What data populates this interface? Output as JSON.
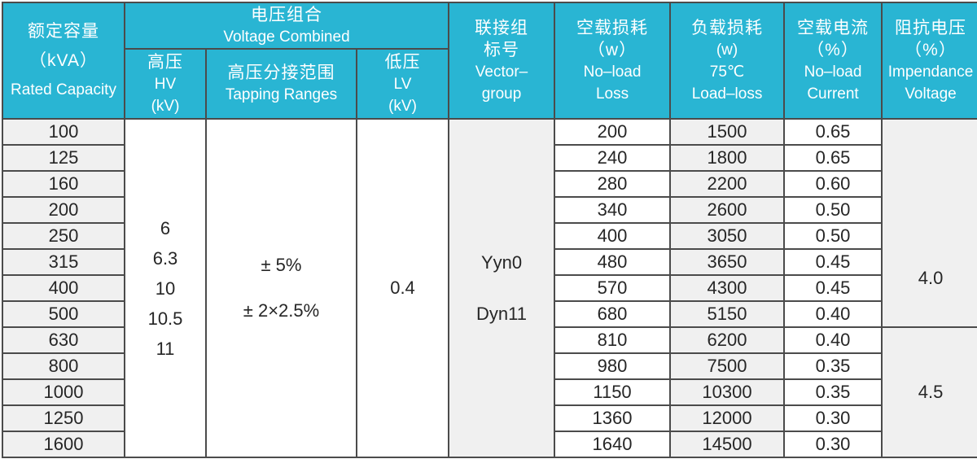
{
  "colors": {
    "header_bg": "#29b5d3",
    "header_text": "#ffffff",
    "gray_col_bg": "#f0f0f0",
    "border": "#4b4b4b",
    "outer_border": "#1a1a1a",
    "body_text": "#262626"
  },
  "header": {
    "rated_capacity": {
      "zh": "额定容量",
      "unit": "（kVA）",
      "en": "Rated Capacity"
    },
    "voltage_combined": {
      "zh": "电压组合",
      "en": "Voltage Combined"
    },
    "hv": {
      "zh": "高压",
      "en": "HV",
      "unit": "(kV)"
    },
    "tapping": {
      "zh": "高压分接范围",
      "en": "Tapping Ranges"
    },
    "lv": {
      "zh": "低压",
      "en": "LV",
      "unit": "(kV)"
    },
    "vector_group": {
      "zh1": "联接组",
      "zh2": "标号",
      "en1": "Vector–",
      "en2": "group"
    },
    "noload_loss": {
      "zh": "空载损耗",
      "unit": "（w）",
      "en1": "No–load",
      "en2": "Loss"
    },
    "load_loss": {
      "zh": "负载损耗",
      "unit": "(w)",
      "temp": "75℃",
      "en": "Load–loss"
    },
    "noload_current": {
      "zh": "空载电流",
      "unit": "（%）",
      "en1": "No–load",
      "en2": "Current"
    },
    "impedance": {
      "zh": "阻抗电压",
      "unit": "（%）",
      "en1": "Impendance",
      "en2": "Voltage"
    }
  },
  "merged": {
    "hv_values": [
      "6",
      "6.3",
      "10",
      "10.5",
      "11"
    ],
    "tapping_values": [
      "± 5%",
      "± 2×2.5%"
    ],
    "lv_value": "0.4",
    "vector_groups": [
      "Yyn0",
      "Dyn11"
    ],
    "impedance_groups": [
      {
        "value": "4.0",
        "row_span": 8,
        "align": "low"
      },
      {
        "value": "4.5",
        "row_span": 5,
        "align": "center"
      }
    ]
  },
  "rows": [
    {
      "capacity": "100",
      "noload_loss": "200",
      "load_loss": "1500",
      "noload_current": "0.65"
    },
    {
      "capacity": "125",
      "noload_loss": "240",
      "load_loss": "1800",
      "noload_current": "0.65"
    },
    {
      "capacity": "160",
      "noload_loss": "280",
      "load_loss": "2200",
      "noload_current": "0.60"
    },
    {
      "capacity": "200",
      "noload_loss": "340",
      "load_loss": "2600",
      "noload_current": "0.50"
    },
    {
      "capacity": "250",
      "noload_loss": "400",
      "load_loss": "3050",
      "noload_current": "0.50"
    },
    {
      "capacity": "315",
      "noload_loss": "480",
      "load_loss": "3650",
      "noload_current": "0.45"
    },
    {
      "capacity": "400",
      "noload_loss": "570",
      "load_loss": "4300",
      "noload_current": "0.45"
    },
    {
      "capacity": "500",
      "noload_loss": "680",
      "load_loss": "5150",
      "noload_current": "0.40"
    },
    {
      "capacity": "630",
      "noload_loss": "810",
      "load_loss": "6200",
      "noload_current": "0.40"
    },
    {
      "capacity": "800",
      "noload_loss": "980",
      "load_loss": "7500",
      "noload_current": "0.35"
    },
    {
      "capacity": "1000",
      "noload_loss": "1150",
      "load_loss": "10300",
      "noload_current": "0.35"
    },
    {
      "capacity": "1250",
      "noload_loss": "1360",
      "load_loss": "12000",
      "noload_current": "0.30"
    },
    {
      "capacity": "1600",
      "noload_loss": "1640",
      "load_loss": "14500",
      "noload_current": "0.30"
    }
  ]
}
